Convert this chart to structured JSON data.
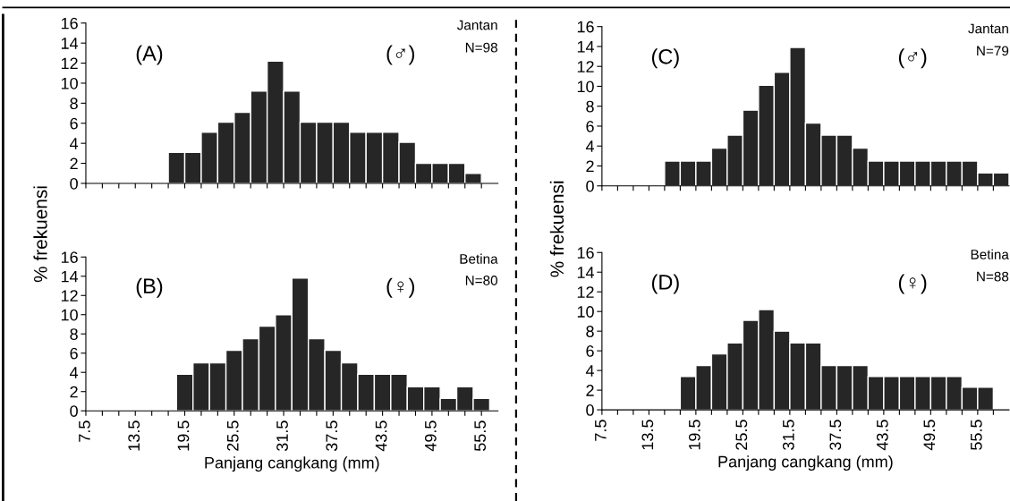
{
  "chart_data": [
    {
      "type": "histogram",
      "bins": [
        17.5,
        19.5,
        21.5,
        23.5,
        25.5,
        27.5,
        29.5,
        31.5,
        33.5,
        35.5,
        37.5,
        39.5,
        41.5,
        43.5,
        45.5,
        47.5,
        49.5,
        51.5,
        53.5,
        55.5
      ],
      "values": [
        3.1,
        3.1,
        5.1,
        6.1,
        7.1,
        9.2,
        12.2,
        9.2,
        6.1,
        6.1,
        6.1,
        5.1,
        5.1,
        5.1,
        4.1,
        2.0,
        2.0,
        2.0,
        1.0
      ],
      "color": "#262626",
      "xlim": [
        7.5,
        57.5
      ],
      "ylim": [
        0,
        16
      ],
      "yticks": [
        0,
        2,
        4,
        6,
        8,
        10,
        12,
        14,
        16
      ],
      "xticks": [
        7.5,
        {
          "value": 9.5,
          "label": null
        },
        {
          "value": 11.5,
          "label": null
        },
        13.5,
        {
          "value": 15.5,
          "label": null
        },
        {
          "value": 17.5,
          "label": null
        },
        19.5,
        {
          "value": 21.5,
          "label": null
        },
        {
          "value": 23.5,
          "label": null
        },
        25.5,
        {
          "value": 27.5,
          "label": null
        },
        {
          "value": 29.5,
          "label": null
        },
        31.5,
        {
          "value": 33.5,
          "label": null
        },
        {
          "value": 35.5,
          "label": null
        },
        37.5,
        {
          "value": 39.5,
          "label": null
        },
        {
          "value": 41.5,
          "label": null
        },
        43.5,
        {
          "value": 45.5,
          "label": null
        },
        {
          "value": 47.5,
          "label": null
        },
        49.5,
        {
          "value": 51.5,
          "label": null
        },
        {
          "value": 53.5,
          "label": null
        },
        55.5
      ],
      "tick_labels": "y",
      "annotations": [
        "(A)",
        "(♂)",
        "Jantan",
        "N=98"
      ]
    },
    {
      "type": "histogram",
      "bins": [
        18.5,
        20.5,
        22.5,
        24.5,
        26.5,
        28.5,
        30.5,
        32.5,
        34.5,
        36.5,
        38.5,
        40.5,
        42.5,
        44.5,
        46.5,
        48.5,
        50.5,
        52.5,
        54.5,
        56.5
      ],
      "values": [
        3.8,
        5.0,
        5.0,
        6.3,
        7.5,
        8.8,
        10.0,
        13.8,
        7.5,
        6.3,
        5.0,
        3.8,
        3.8,
        3.8,
        2.5,
        2.5,
        1.3,
        2.5,
        1.3
      ],
      "color": "#262626",
      "xlim": [
        7.5,
        57.5
      ],
      "ylim": [
        0,
        16
      ],
      "yticks": [
        0,
        2,
        4,
        6,
        8,
        10,
        12,
        14,
        16
      ],
      "xticks": [
        7.5,
        {
          "value": 9.5,
          "label": null
        },
        {
          "value": 11.5,
          "label": null
        },
        13.5,
        {
          "value": 15.5,
          "label": null
        },
        {
          "value": 17.5,
          "label": null
        },
        19.5,
        {
          "value": 21.5,
          "label": null
        },
        {
          "value": 23.5,
          "label": null
        },
        25.5,
        {
          "value": 27.5,
          "label": null
        },
        {
          "value": 29.5,
          "label": null
        },
        31.5,
        {
          "value": 33.5,
          "label": null
        },
        {
          "value": 35.5,
          "label": null
        },
        37.5,
        {
          "value": 39.5,
          "label": null
        },
        {
          "value": 41.5,
          "label": null
        },
        43.5,
        {
          "value": 45.5,
          "label": null
        },
        {
          "value": 47.5,
          "label": null
        },
        49.5,
        {
          "value": 51.5,
          "label": null
        },
        {
          "value": 53.5,
          "label": null
        },
        55.5
      ],
      "xlabel": "Panjang cangkang (mm)",
      "ylabel": "% frekuensi",
      "annotations": [
        "(B)",
        "(♀)",
        "Betina",
        "N=80"
      ]
    },
    {
      "type": "histogram",
      "bins": [
        15.5,
        17.5,
        19.5,
        21.5,
        23.5,
        25.5,
        27.5,
        29.5,
        31.5,
        33.5,
        35.5,
        37.5,
        39.5,
        41.5,
        43.5,
        45.5,
        47.5,
        49.5,
        51.5,
        53.5,
        55.5,
        57.5,
        59.5
      ],
      "values": [
        2.5,
        2.5,
        2.5,
        3.8,
        5.1,
        7.6,
        10.1,
        11.4,
        13.9,
        6.3,
        5.1,
        5.1,
        3.8,
        2.5,
        2.5,
        2.5,
        2.5,
        2.5,
        2.5,
        2.5,
        1.3,
        1.3
      ],
      "color": "#262626",
      "xlim": [
        7.5,
        59.5
      ],
      "ylim": [
        0,
        16
      ],
      "yticks": [
        0,
        2,
        4,
        6,
        8,
        10,
        12,
        14,
        16
      ],
      "xticks": [
        7.5,
        {
          "value": 9.5,
          "label": null
        },
        {
          "value": 11.5,
          "label": null
        },
        13.5,
        {
          "value": 15.5,
          "label": null
        },
        {
          "value": 17.5,
          "label": null
        },
        19.5,
        {
          "value": 21.5,
          "label": null
        },
        {
          "value": 23.5,
          "label": null
        },
        25.5,
        {
          "value": 27.5,
          "label": null
        },
        {
          "value": 29.5,
          "label": null
        },
        31.5,
        {
          "value": 33.5,
          "label": null
        },
        {
          "value": 35.5,
          "label": null
        },
        37.5,
        {
          "value": 39.5,
          "label": null
        },
        {
          "value": 41.5,
          "label": null
        },
        43.5,
        {
          "value": 45.5,
          "label": null
        },
        {
          "value": 47.5,
          "label": null
        },
        49.5,
        {
          "value": 51.5,
          "label": null
        },
        {
          "value": 53.5,
          "label": null
        },
        55.5,
        {
          "value": 57.5,
          "label": null
        }
      ],
      "tick_labels": "y",
      "annotations": [
        "(C)",
        "(♂)",
        "Jantan",
        "N=79"
      ]
    },
    {
      "type": "histogram",
      "bins": [
        17.5,
        19.5,
        21.5,
        23.5,
        25.5,
        27.5,
        29.5,
        31.5,
        33.5,
        35.5,
        37.5,
        39.5,
        41.5,
        43.5,
        45.5,
        47.5,
        49.5,
        51.5,
        53.5,
        55.5,
        57.5
      ],
      "values": [
        3.4,
        4.5,
        5.7,
        6.8,
        9.1,
        10.2,
        8.0,
        6.8,
        6.8,
        4.5,
        4.5,
        4.5,
        3.4,
        3.4,
        3.4,
        3.4,
        3.4,
        3.4,
        2.3,
        2.3
      ],
      "color": "#262626",
      "xlim": [
        7.5,
        59.5
      ],
      "ylim": [
        0,
        16
      ],
      "yticks": [
        0,
        2,
        4,
        6,
        8,
        10,
        12,
        14,
        16
      ],
      "xticks": [
        7.5,
        {
          "value": 9.5,
          "label": null
        },
        {
          "value": 11.5,
          "label": null
        },
        13.5,
        {
          "value": 15.5,
          "label": null
        },
        {
          "value": 17.5,
          "label": null
        },
        19.5,
        {
          "value": 21.5,
          "label": null
        },
        {
          "value": 23.5,
          "label": null
        },
        25.5,
        {
          "value": 27.5,
          "label": null
        },
        {
          "value": 29.5,
          "label": null
        },
        31.5,
        {
          "value": 33.5,
          "label": null
        },
        {
          "value": 35.5,
          "label": null
        },
        37.5,
        {
          "value": 39.5,
          "label": null
        },
        {
          "value": 41.5,
          "label": null
        },
        43.5,
        {
          "value": 45.5,
          "label": null
        },
        {
          "value": 47.5,
          "label": null
        },
        49.5,
        {
          "value": 51.5,
          "label": null
        },
        {
          "value": 53.5,
          "label": null
        },
        55.5,
        {
          "value": 57.5,
          "label": null
        }
      ],
      "xlabel": "Panjang cangkang (mm)",
      "ylabel": "% frekuensi",
      "annotations": [
        "(D)",
        "(♀)",
        "Betina",
        "N=88"
      ]
    }
  ]
}
